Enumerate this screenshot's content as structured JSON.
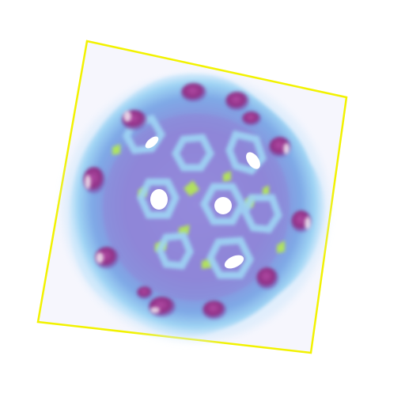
{
  "colors": {
    "background": "#ffffff",
    "bounding_box": "#f2f200",
    "volume_fill": "#f7f7ff",
    "shell_outer": "#8fc8f0",
    "shell_mid": "#7fa9e6",
    "shell_core": "#8f86d8",
    "lobe": "#8e2f85",
    "isosurface_high": "#b7f04a",
    "ring_hole": "#ffffff"
  },
  "icons": {
    "molecule": "fullerene-density-icon"
  }
}
